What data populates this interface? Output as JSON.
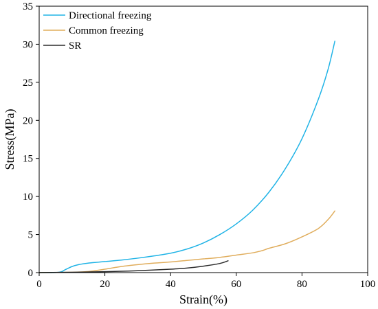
{
  "chart_data": {
    "type": "line",
    "xlabel": "Strain(%)",
    "ylabel": "Stress(MPa)",
    "xlim": [
      0,
      100
    ],
    "ylim": [
      0,
      35
    ],
    "xticks": [
      0,
      20,
      40,
      60,
      80,
      100
    ],
    "yticks": [
      0,
      5,
      10,
      15,
      20,
      25,
      30,
      35
    ],
    "grid": false,
    "legend_position": "top-left",
    "series": [
      {
        "name": "Directional freezing",
        "color": "#1fb3e6",
        "points": [
          [
            0,
            0
          ],
          [
            6,
            0.05
          ],
          [
            8,
            0.4
          ],
          [
            10,
            0.8
          ],
          [
            12,
            1.05
          ],
          [
            15,
            1.25
          ],
          [
            20,
            1.45
          ],
          [
            25,
            1.65
          ],
          [
            30,
            1.9
          ],
          [
            35,
            2.2
          ],
          [
            40,
            2.55
          ],
          [
            45,
            3.1
          ],
          [
            50,
            3.9
          ],
          [
            55,
            5.0
          ],
          [
            60,
            6.4
          ],
          [
            65,
            8.2
          ],
          [
            70,
            10.6
          ],
          [
            75,
            13.7
          ],
          [
            80,
            17.6
          ],
          [
            85,
            22.8
          ],
          [
            88,
            26.8
          ],
          [
            90,
            30.4
          ]
        ]
      },
      {
        "name": "Common freezing",
        "color": "#e0ad5c",
        "points": [
          [
            0,
            0
          ],
          [
            10,
            0.05
          ],
          [
            15,
            0.15
          ],
          [
            20,
            0.45
          ],
          [
            25,
            0.8
          ],
          [
            30,
            1.05
          ],
          [
            35,
            1.25
          ],
          [
            40,
            1.4
          ],
          [
            45,
            1.6
          ],
          [
            50,
            1.8
          ],
          [
            55,
            2.0
          ],
          [
            60,
            2.3
          ],
          [
            65,
            2.6
          ],
          [
            68,
            2.9
          ],
          [
            70,
            3.2
          ],
          [
            75,
            3.8
          ],
          [
            80,
            4.7
          ],
          [
            85,
            5.8
          ],
          [
            88,
            7.0
          ],
          [
            90,
            8.1
          ]
        ]
      },
      {
        "name": "SR",
        "color": "#2b2b2b",
        "points": [
          [
            0,
            0
          ],
          [
            10,
            0.05
          ],
          [
            20,
            0.12
          ],
          [
            30,
            0.25
          ],
          [
            40,
            0.45
          ],
          [
            45,
            0.6
          ],
          [
            50,
            0.85
          ],
          [
            55,
            1.2
          ],
          [
            57.5,
            1.55
          ]
        ]
      }
    ]
  }
}
